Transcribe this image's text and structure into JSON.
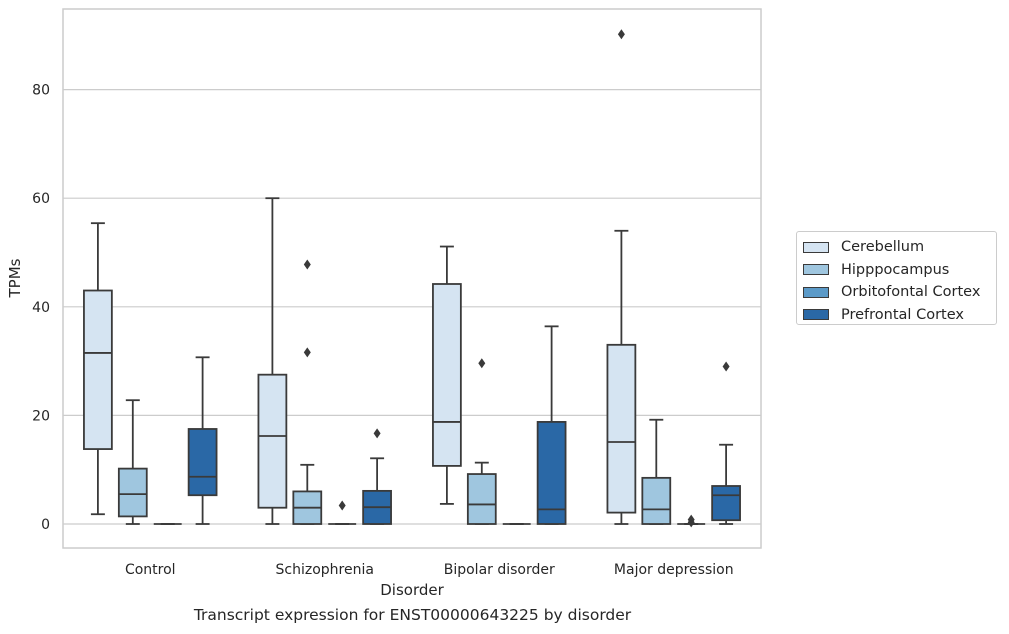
{
  "chart_data": {
    "type": "box",
    "caption": "Transcript expression for ENST00000643225 by disorder",
    "xlabel": "Disorder",
    "ylabel": "TPMs",
    "ylim": [
      -4.5,
      95
    ],
    "yticks": [
      0,
      20,
      40,
      60,
      80
    ],
    "grid": true,
    "legend_position": "right",
    "categories": [
      "Control",
      "Schizophrenia",
      "Bipolar disorder",
      "Major depression"
    ],
    "series": [
      {
        "name": "Cerebellum",
        "color": "#d5e4f2",
        "boxes": [
          {
            "whislo": 1.8,
            "q1": 13.8,
            "med": 31.5,
            "q3": 43.0,
            "whishi": 55.4,
            "fliers": []
          },
          {
            "whislo": 0.0,
            "q1": 3.0,
            "med": 16.2,
            "q3": 27.5,
            "whishi": 60.0,
            "fliers": []
          },
          {
            "whislo": 3.7,
            "q1": 10.7,
            "med": 18.8,
            "q3": 44.2,
            "whishi": 51.1,
            "fliers": []
          },
          {
            "whislo": 0.0,
            "q1": 2.1,
            "med": 15.1,
            "q3": 33.0,
            "whishi": 54.0,
            "fliers": [
              90.2
            ]
          }
        ]
      },
      {
        "name": "Hipppocampus",
        "color": "#9fc6df",
        "boxes": [
          {
            "whislo": 0.0,
            "q1": 1.4,
            "med": 5.5,
            "q3": 10.2,
            "whishi": 22.8,
            "fliers": []
          },
          {
            "whislo": 0.0,
            "q1": 0.0,
            "med": 3.0,
            "q3": 6.0,
            "whishi": 10.9,
            "fliers": [
              47.8,
              31.6
            ]
          },
          {
            "whislo": 0.0,
            "q1": 0.0,
            "med": 3.6,
            "q3": 9.2,
            "whishi": 11.3,
            "fliers": [
              29.6
            ]
          },
          {
            "whislo": 0.0,
            "q1": 0.0,
            "med": 2.7,
            "q3": 8.5,
            "whishi": 19.2,
            "fliers": []
          }
        ]
      },
      {
        "name": "Orbitofontal Cortex",
        "color": "#5b9ac8",
        "boxes": [
          {
            "whislo": 0.0,
            "q1": 0.0,
            "med": 0.0,
            "q3": 0.0,
            "whishi": 0.0,
            "fliers": []
          },
          {
            "whislo": 0.0,
            "q1": 0.0,
            "med": 0.0,
            "q3": 0.0,
            "whishi": 0.0,
            "fliers": [
              3.4
            ]
          },
          {
            "whislo": 0.0,
            "q1": 0.0,
            "med": 0.0,
            "q3": 0.0,
            "whishi": 0.0,
            "fliers": []
          },
          {
            "whislo": 0.0,
            "q1": 0.0,
            "med": 0.0,
            "q3": 0.0,
            "whishi": 0.0,
            "fliers": [
              0.8,
              0.3
            ]
          }
        ]
      },
      {
        "name": "Prefrontal Cortex",
        "color": "#2a68a6",
        "boxes": [
          {
            "whislo": 0.0,
            "q1": 5.3,
            "med": 8.7,
            "q3": 17.5,
            "whishi": 30.7,
            "fliers": []
          },
          {
            "whislo": 0.0,
            "q1": 0.0,
            "med": 3.1,
            "q3": 6.1,
            "whishi": 12.1,
            "fliers": [
              16.7
            ]
          },
          {
            "whislo": 0.0,
            "q1": 0.0,
            "med": 2.7,
            "q3": 18.8,
            "whishi": 36.4,
            "fliers": []
          },
          {
            "whislo": 0.0,
            "q1": 0.7,
            "med": 5.3,
            "q3": 7.0,
            "whishi": 14.6,
            "fliers": [
              29.0
            ]
          }
        ]
      }
    ]
  }
}
